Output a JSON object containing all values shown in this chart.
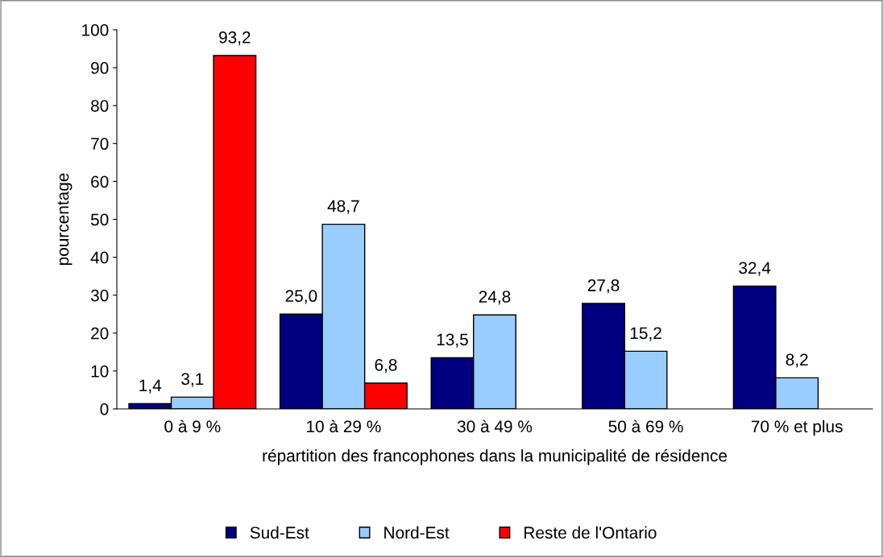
{
  "chart_data": {
    "type": "bar",
    "xlabel": "répartition des francophones dans la municipalité de résidence",
    "ylabel": "pourcentage",
    "categories": [
      "0 à 9 %",
      "10 à 29 %",
      "30 à 49 %",
      "50 à 69 %",
      "70 % et plus"
    ],
    "series": [
      {
        "name": "Sud-Est",
        "color": "#000080",
        "values": [
          1.4,
          25.0,
          13.5,
          27.8,
          32.4
        ],
        "value_labels": [
          "1,4",
          "25,0",
          "13,5",
          "27,8",
          "32,4"
        ]
      },
      {
        "name": "Nord-Est",
        "color": "#99ccff",
        "values": [
          3.1,
          48.7,
          24.8,
          15.2,
          8.2
        ],
        "value_labels": [
          "3,1",
          "48,7",
          "24,8",
          "15,2",
          "8,2"
        ]
      },
      {
        "name": "Reste de l'Ontario",
        "color": "#ff0000",
        "values": [
          93.2,
          6.8,
          null,
          null,
          null
        ],
        "value_labels": [
          "93,2",
          "6,8",
          null,
          null,
          null
        ]
      }
    ],
    "ylim": [
      0,
      100
    ],
    "yticks": [
      0,
      10,
      20,
      30,
      40,
      50,
      60,
      70,
      80,
      90,
      100
    ],
    "grid": false,
    "legend": "bottom"
  }
}
